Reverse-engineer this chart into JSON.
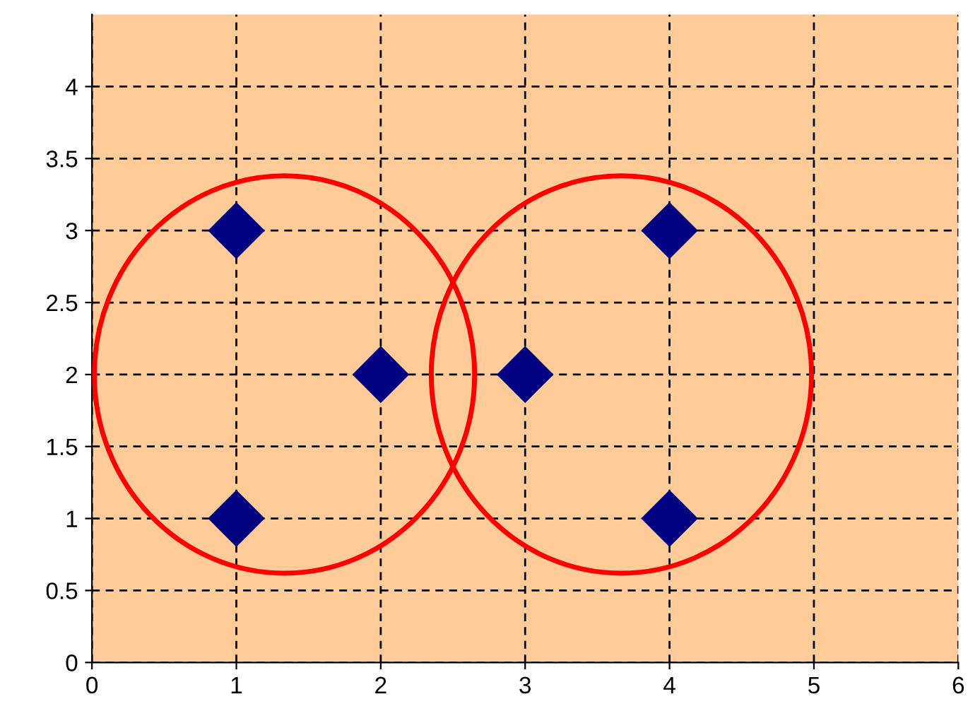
{
  "chart_data": {
    "type": "scatter",
    "marker": "diamond",
    "grid": true,
    "series": [
      {
        "color": "#000080",
        "x": [
          1,
          2,
          1
        ],
        "values": [
          3,
          2,
          1
        ]
      },
      {
        "color": "#000080",
        "x": [
          3,
          4,
          4
        ],
        "values": [
          2,
          3,
          1
        ]
      }
    ],
    "xlim": [
      0,
      6
    ],
    "xticks": [
      0,
      1,
      2,
      3,
      4,
      5,
      6
    ],
    "ylim": [
      0,
      4.5
    ],
    "yticks": [
      0,
      0.5,
      1,
      1.5,
      2,
      2.5,
      3,
      3.5,
      4
    ]
  }
}
